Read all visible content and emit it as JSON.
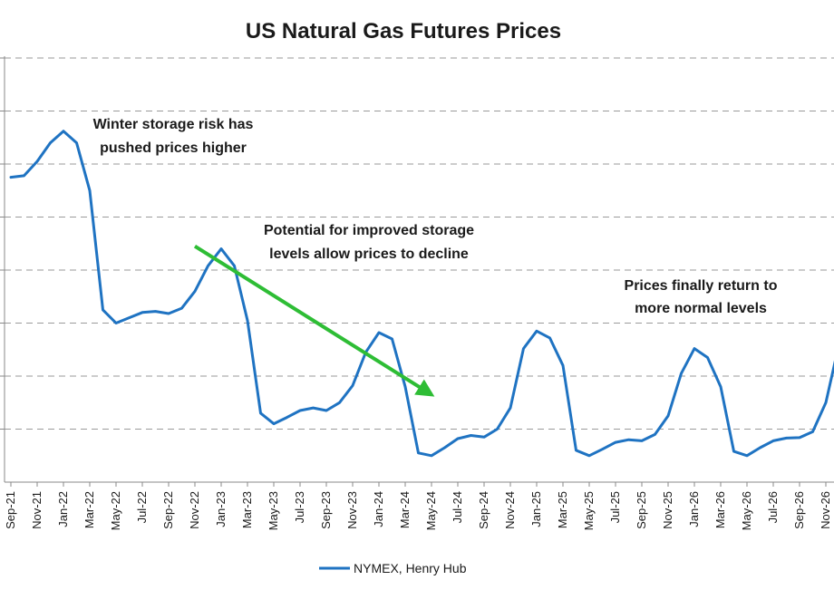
{
  "chart_data": {
    "type": "line",
    "title": "US Natural Gas Futures Prices",
    "xlabel": "",
    "ylabel": "",
    "ylim": [
      0,
      8
    ],
    "grid": true,
    "legend_position": "bottom",
    "x": [
      "Sep-21",
      "Oct-21",
      "Nov-21",
      "Dec-21",
      "Jan-22",
      "Feb-22",
      "Mar-22",
      "Apr-22",
      "May-22",
      "Jun-22",
      "Jul-22",
      "Aug-22",
      "Sep-22",
      "Oct-22",
      "Nov-22",
      "Dec-22",
      "Jan-23",
      "Feb-23",
      "Mar-23",
      "Apr-23",
      "May-23",
      "Jun-23",
      "Jul-23",
      "Aug-23",
      "Sep-23",
      "Oct-23",
      "Nov-23",
      "Dec-23",
      "Jan-24",
      "Feb-24",
      "Mar-24",
      "Apr-24",
      "May-24",
      "Jun-24",
      "Jul-24",
      "Aug-24",
      "Sep-24",
      "Oct-24",
      "Nov-24",
      "Dec-24",
      "Jan-25",
      "Feb-25",
      "Mar-25",
      "Apr-25",
      "May-25",
      "Jun-25",
      "Jul-25",
      "Aug-25",
      "Sep-25",
      "Oct-25",
      "Nov-25",
      "Dec-25",
      "Jan-26",
      "Feb-26",
      "Mar-26",
      "Apr-26",
      "May-26",
      "Jun-26",
      "Jul-26",
      "Aug-26",
      "Sep-26",
      "Oct-26",
      "Nov-26",
      "Dec-26"
    ],
    "tick_labels": [
      "Sep-21",
      "Nov-21",
      "Jan-22",
      "Mar-22",
      "May-22",
      "Jul-22",
      "Sep-22",
      "Nov-22",
      "Jan-23",
      "Mar-23",
      "May-23",
      "Jul-23",
      "Sep-23",
      "Nov-23",
      "Jan-24",
      "Mar-24",
      "May-24",
      "Jul-24",
      "Sep-24",
      "Nov-24",
      "Jan-25",
      "Mar-25",
      "May-25",
      "Jul-25",
      "Sep-25",
      "Nov-25",
      "Jan-26",
      "Mar-26",
      "May-26",
      "Jul-26",
      "Sep-26",
      "Nov-26"
    ],
    "series": [
      {
        "name": "NYMEX, Henry Hub",
        "color": "#1f73c2",
        "values": [
          5.75,
          5.78,
          6.05,
          6.4,
          6.62,
          6.4,
          5.5,
          3.25,
          3.0,
          3.1,
          3.2,
          3.22,
          3.18,
          3.28,
          3.6,
          4.08,
          4.4,
          4.08,
          3.05,
          1.3,
          1.1,
          1.22,
          1.35,
          1.4,
          1.35,
          1.5,
          1.82,
          2.45,
          2.82,
          2.7,
          1.8,
          0.55,
          0.5,
          0.65,
          0.82,
          0.88,
          0.85,
          1.0,
          1.4,
          2.52,
          2.85,
          2.72,
          2.2,
          0.6,
          0.5,
          0.62,
          0.75,
          0.8,
          0.78,
          0.9,
          1.25,
          2.05,
          2.52,
          2.35,
          1.8,
          0.58,
          0.5,
          0.65,
          0.78,
          0.83,
          0.84,
          0.95,
          1.5,
          2.6
        ]
      }
    ],
    "annotations": [
      {
        "lines": [
          "Winter storage risk has",
          "pushed prices higher"
        ]
      },
      {
        "lines": [
          "Potential for improved storage",
          "levels allow prices to decline"
        ]
      },
      {
        "lines": [
          "Prices finally return to",
          "more normal levels"
        ]
      }
    ],
    "trend_arrow": {
      "color": "#2ebd35",
      "from": {
        "x": "Nov-22",
        "y": 4.45
      },
      "to": {
        "x": "May-24",
        "y": 1.65
      }
    }
  }
}
